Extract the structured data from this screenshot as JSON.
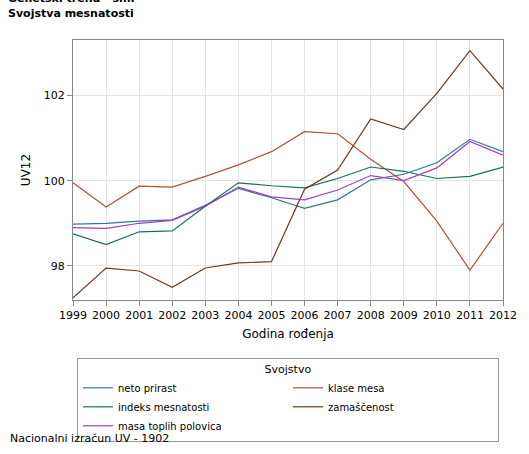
{
  "chart_data": {
    "type": "line",
    "title": "Genetski trend - sim",
    "subtitle": "Svojstva mesnatosti",
    "x_label": "Godina rođenja",
    "y_label": "UV12",
    "legend_title": "Svojstvo",
    "annotations": [
      "Nacionalni izračun UV - 1902"
    ],
    "x": [
      1999,
      2000,
      2001,
      2002,
      2003,
      2004,
      2005,
      2006,
      2007,
      2008,
      2009,
      2010,
      2011,
      2012
    ],
    "xlim": [
      1999,
      2012
    ],
    "xticks": [
      1999,
      2000,
      2001,
      2002,
      2003,
      2004,
      2005,
      2006,
      2007,
      2008,
      2009,
      2010,
      2011,
      2012
    ],
    "ylim": [
      97.2,
      103.3
    ],
    "yticks": [
      98,
      100,
      102
    ],
    "grid": true,
    "legend": "bottom",
    "line_style": "solid",
    "series": [
      {
        "name": "neto prirast",
        "color": "#2b7c8a",
        "values": [
          98.98,
          99.0,
          99.05,
          99.08,
          99.42,
          99.82,
          99.6,
          99.35,
          99.55,
          100.02,
          100.15,
          100.42,
          100.97,
          100.68
        ]
      },
      {
        "name": "klase mesa",
        "color": "#b4503a",
        "values": [
          99.95,
          99.38,
          99.87,
          99.85,
          100.1,
          100.37,
          100.68,
          101.15,
          101.1,
          100.5,
          99.98,
          99.05,
          97.9,
          99.0
        ]
      },
      {
        "name": "indeks mesnatosti",
        "color": "#1a6e5e",
        "values": [
          98.75,
          98.5,
          98.8,
          98.82,
          99.4,
          99.95,
          99.88,
          99.83,
          100.05,
          100.32,
          100.22,
          100.05,
          100.1,
          100.32
        ]
      },
      {
        "name": "zamaščenost",
        "color": "#6b3a1f",
        "values": [
          97.25,
          97.95,
          97.88,
          97.5,
          97.95,
          98.07,
          98.1,
          99.8,
          100.25,
          101.45,
          101.2,
          102.05,
          103.05,
          102.15
        ]
      },
      {
        "name": "masa toplih polovica",
        "color": "#a23cc8",
        "values": [
          98.9,
          98.88,
          99.0,
          99.07,
          99.4,
          99.85,
          99.62,
          99.55,
          99.78,
          100.12,
          100.0,
          100.3,
          100.92,
          100.6
        ]
      }
    ]
  }
}
